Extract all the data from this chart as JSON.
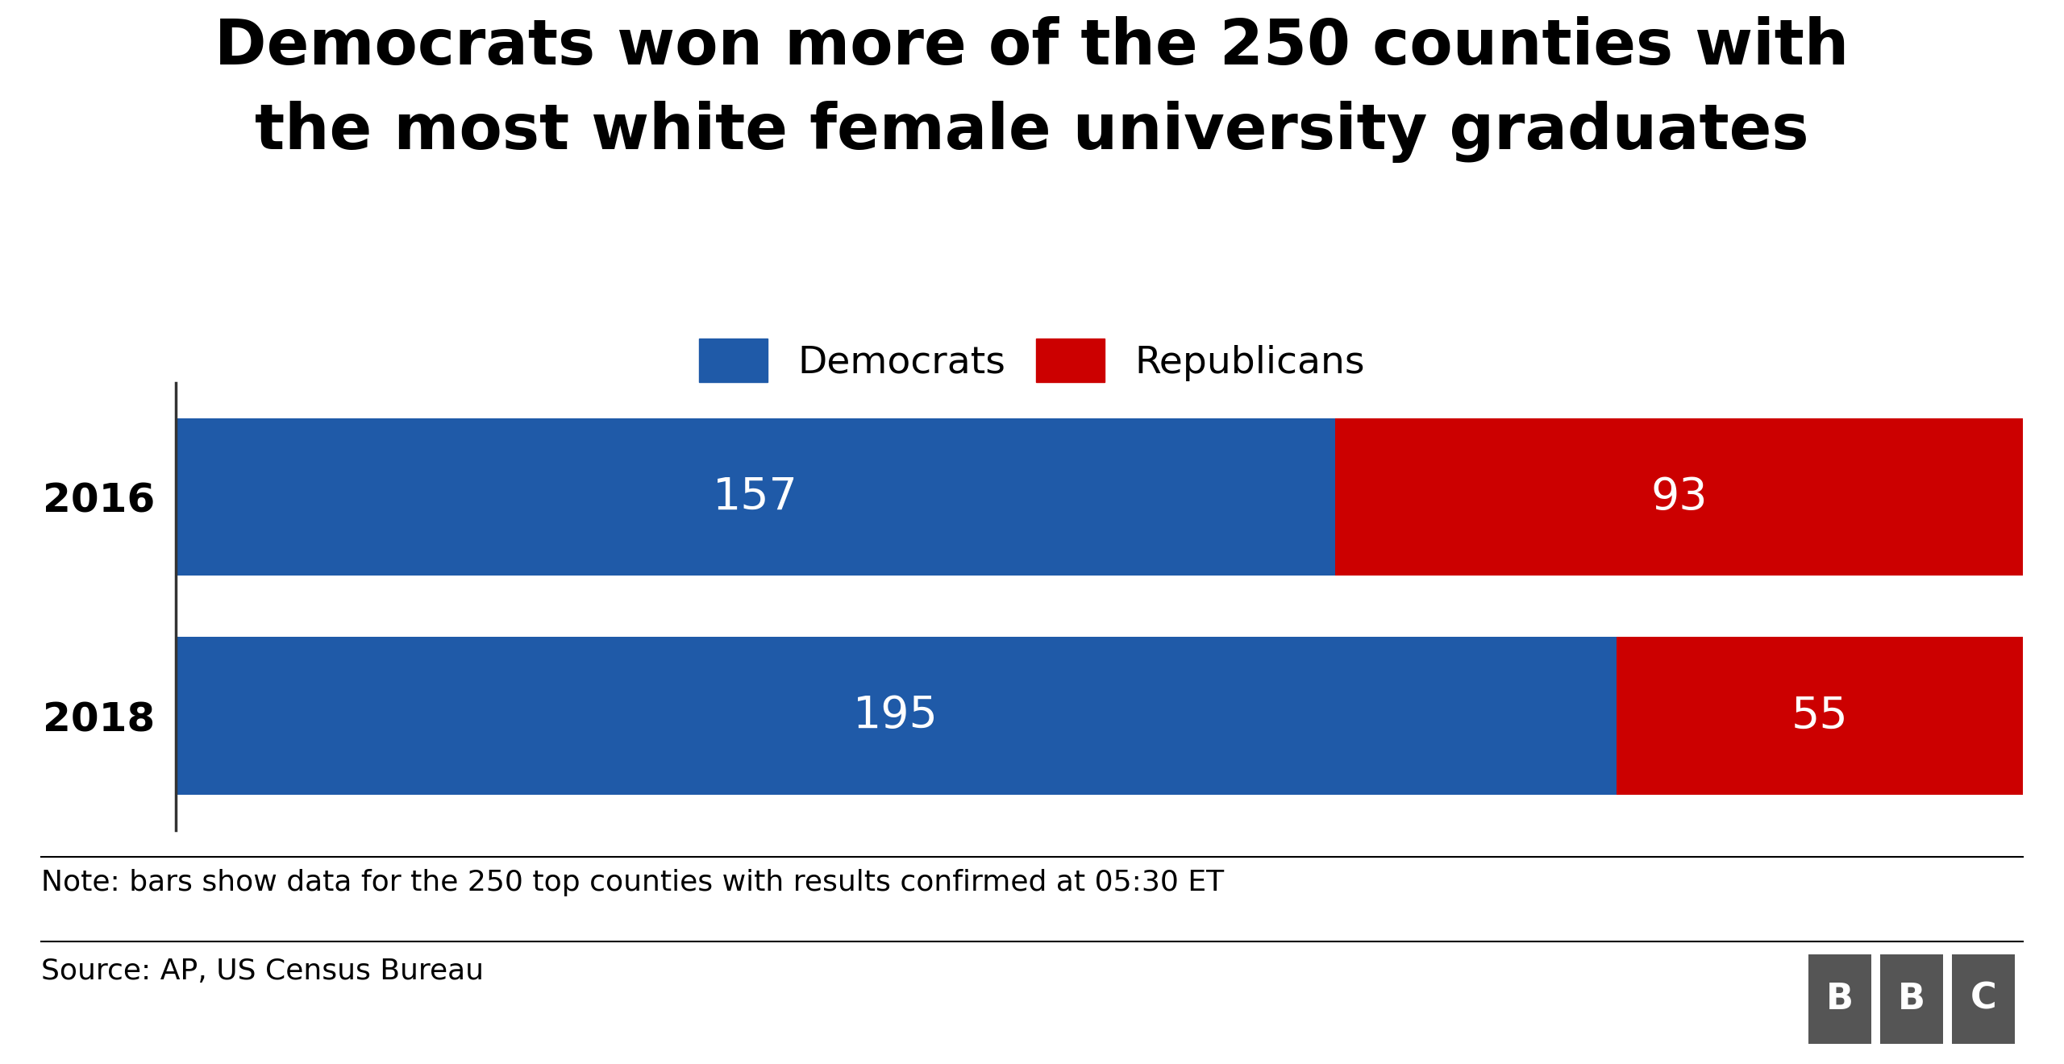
{
  "title_line1": "Democrats won more of the 250 counties with",
  "title_line2": "the most white female university graduates",
  "years": [
    "2016",
    "2018"
  ],
  "democrats": [
    157,
    195
  ],
  "republicans": [
    93,
    55
  ],
  "total": 250,
  "dem_color": "#1f5aa8",
  "rep_color": "#cc0000",
  "background_color": "#ffffff",
  "title_fontsize": 56,
  "legend_fontsize": 34,
  "bar_label_fontsize": 40,
  "year_fontsize": 36,
  "note_fontsize": 26,
  "source_fontsize": 26,
  "note_text": "Note: bars show data for the 250 top counties with results confirmed at 05:30 ET",
  "source_text": "Source: AP, US Census Bureau",
  "legend_labels": [
    "Democrats",
    "Republicans"
  ],
  "bbc_bg": "#555555"
}
